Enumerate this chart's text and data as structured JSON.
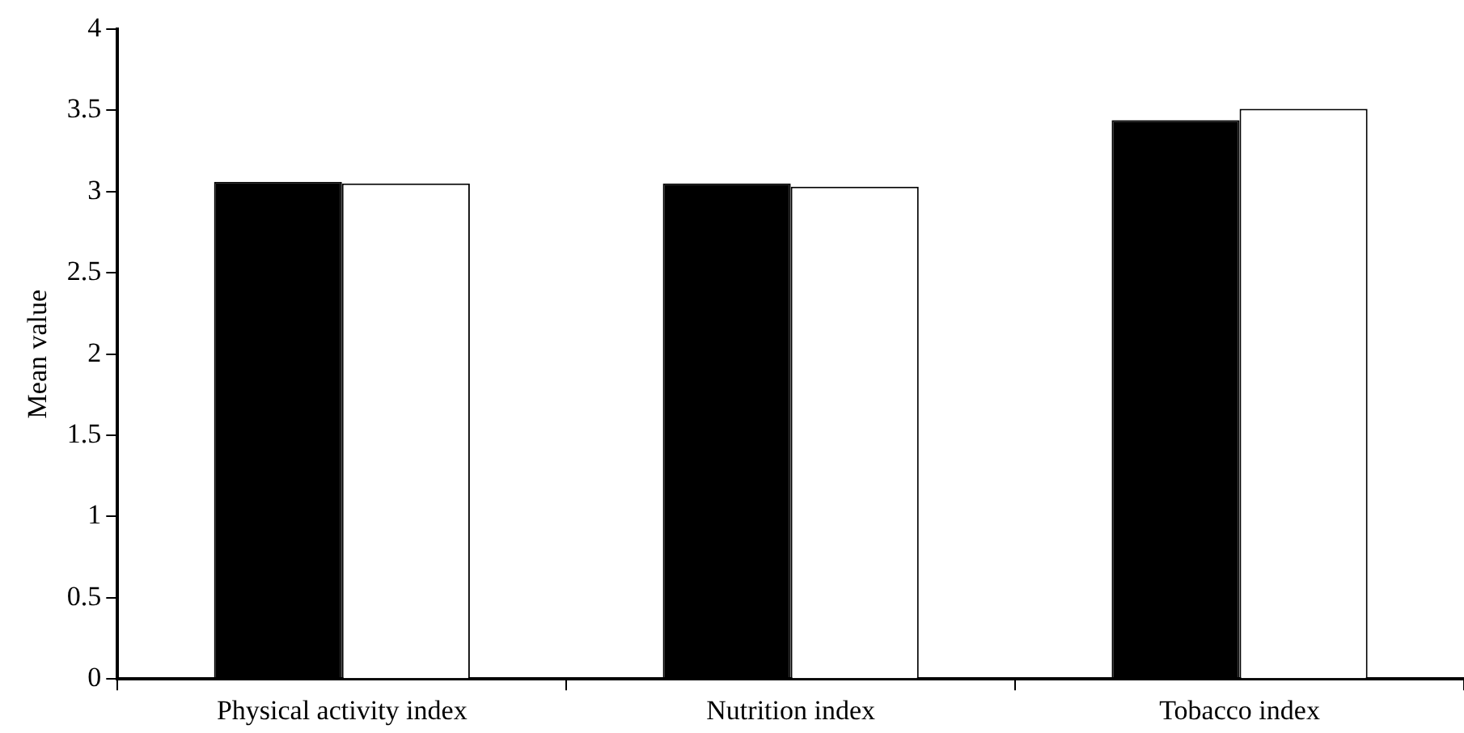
{
  "chart_data": {
    "type": "bar",
    "ylabel": "Mean value",
    "categories": [
      "Physical activity index",
      "Nutrition index",
      "Tobacco index"
    ],
    "series": [
      {
        "color": "#000000",
        "values": [
          3.06,
          3.05,
          3.44
        ]
      },
      {
        "color": "#ffffff",
        "values": [
          3.05,
          3.03,
          3.51
        ]
      }
    ],
    "ylim": [
      0,
      4
    ],
    "yticks": [
      0,
      0.5,
      1,
      1.5,
      2,
      2.5,
      3,
      3.5,
      4
    ],
    "grid": false,
    "legend": false
  }
}
